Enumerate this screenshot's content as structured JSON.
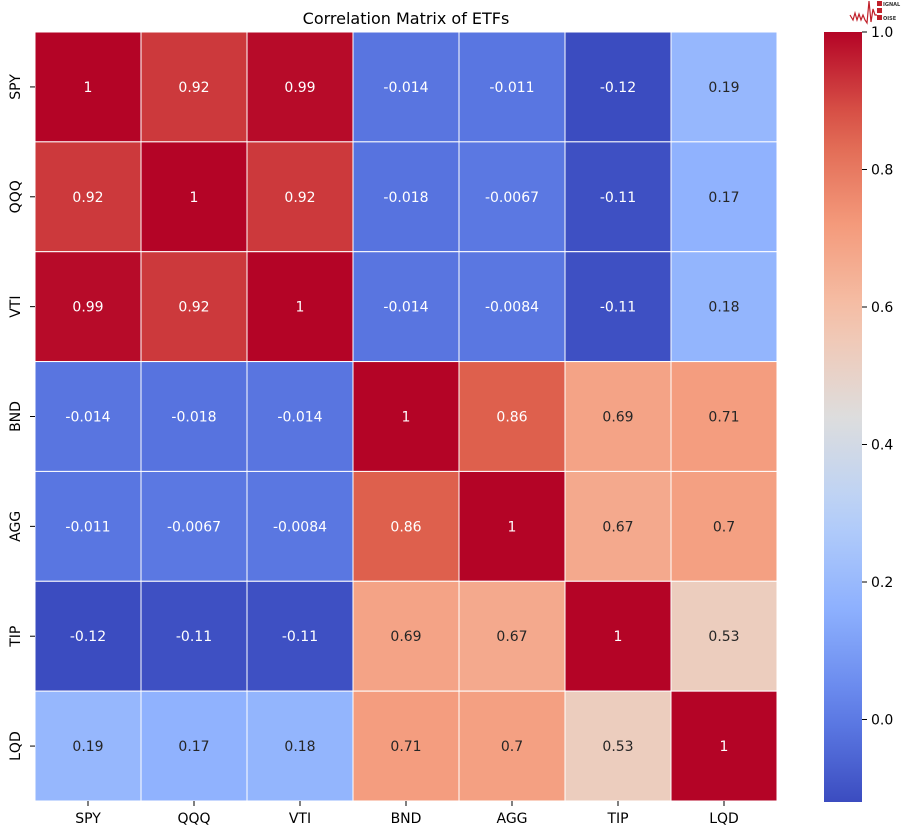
{
  "chart_data": {
    "type": "heatmap",
    "title": "Correlation Matrix of ETFs",
    "xlabel": "",
    "ylabel": "",
    "categories_x": [
      "SPY",
      "QQQ",
      "VTI",
      "BND",
      "AGG",
      "TIP",
      "LQD"
    ],
    "categories_y": [
      "SPY",
      "QQQ",
      "VTI",
      "BND",
      "AGG",
      "TIP",
      "LQD"
    ],
    "values": [
      [
        1,
        0.92,
        0.99,
        -0.014,
        -0.011,
        -0.12,
        0.19
      ],
      [
        0.92,
        1,
        0.92,
        -0.018,
        -0.0067,
        -0.11,
        0.17
      ],
      [
        0.99,
        0.92,
        1,
        -0.014,
        -0.0084,
        -0.11,
        0.18
      ],
      [
        -0.014,
        -0.018,
        -0.014,
        1,
        0.86,
        0.69,
        0.71
      ],
      [
        -0.011,
        -0.0067,
        -0.0084,
        0.86,
        1,
        0.67,
        0.7
      ],
      [
        -0.12,
        -0.11,
        -0.11,
        0.69,
        0.67,
        1,
        0.53
      ],
      [
        0.19,
        0.17,
        0.18,
        0.71,
        0.7,
        0.53,
        1
      ]
    ],
    "labels": [
      [
        "1",
        "0.92",
        "0.99",
        "-0.014",
        "-0.011",
        "-0.12",
        "0.19"
      ],
      [
        "0.92",
        "1",
        "0.92",
        "-0.018",
        "-0.0067",
        "-0.11",
        "0.17"
      ],
      [
        "0.99",
        "0.92",
        "1",
        "-0.014",
        "-0.0084",
        "-0.11",
        "0.18"
      ],
      [
        "-0.014",
        "-0.018",
        "-0.014",
        "1",
        "0.86",
        "0.69",
        "0.71"
      ],
      [
        "-0.011",
        "-0.0067",
        "-0.0084",
        "0.86",
        "1",
        "0.67",
        "0.7"
      ],
      [
        "-0.12",
        "-0.11",
        "-0.11",
        "0.69",
        "0.67",
        "1",
        "0.53"
      ],
      [
        "0.19",
        "0.17",
        "0.18",
        "0.71",
        "0.7",
        "0.53",
        "1"
      ]
    ],
    "colormap": "coolwarm",
    "vmin": -0.12,
    "vmax": 1,
    "colorbar_ticks": [
      "0.0",
      "0.2",
      "0.4",
      "0.6",
      "0.8",
      "1.0"
    ],
    "colorbar_tick_values": [
      0,
      0.2,
      0.4,
      0.6,
      0.8,
      1.0
    ],
    "grid": false
  },
  "logo": {
    "text": "SIGNAL 2 NOISE",
    "color": "#c0202a"
  }
}
